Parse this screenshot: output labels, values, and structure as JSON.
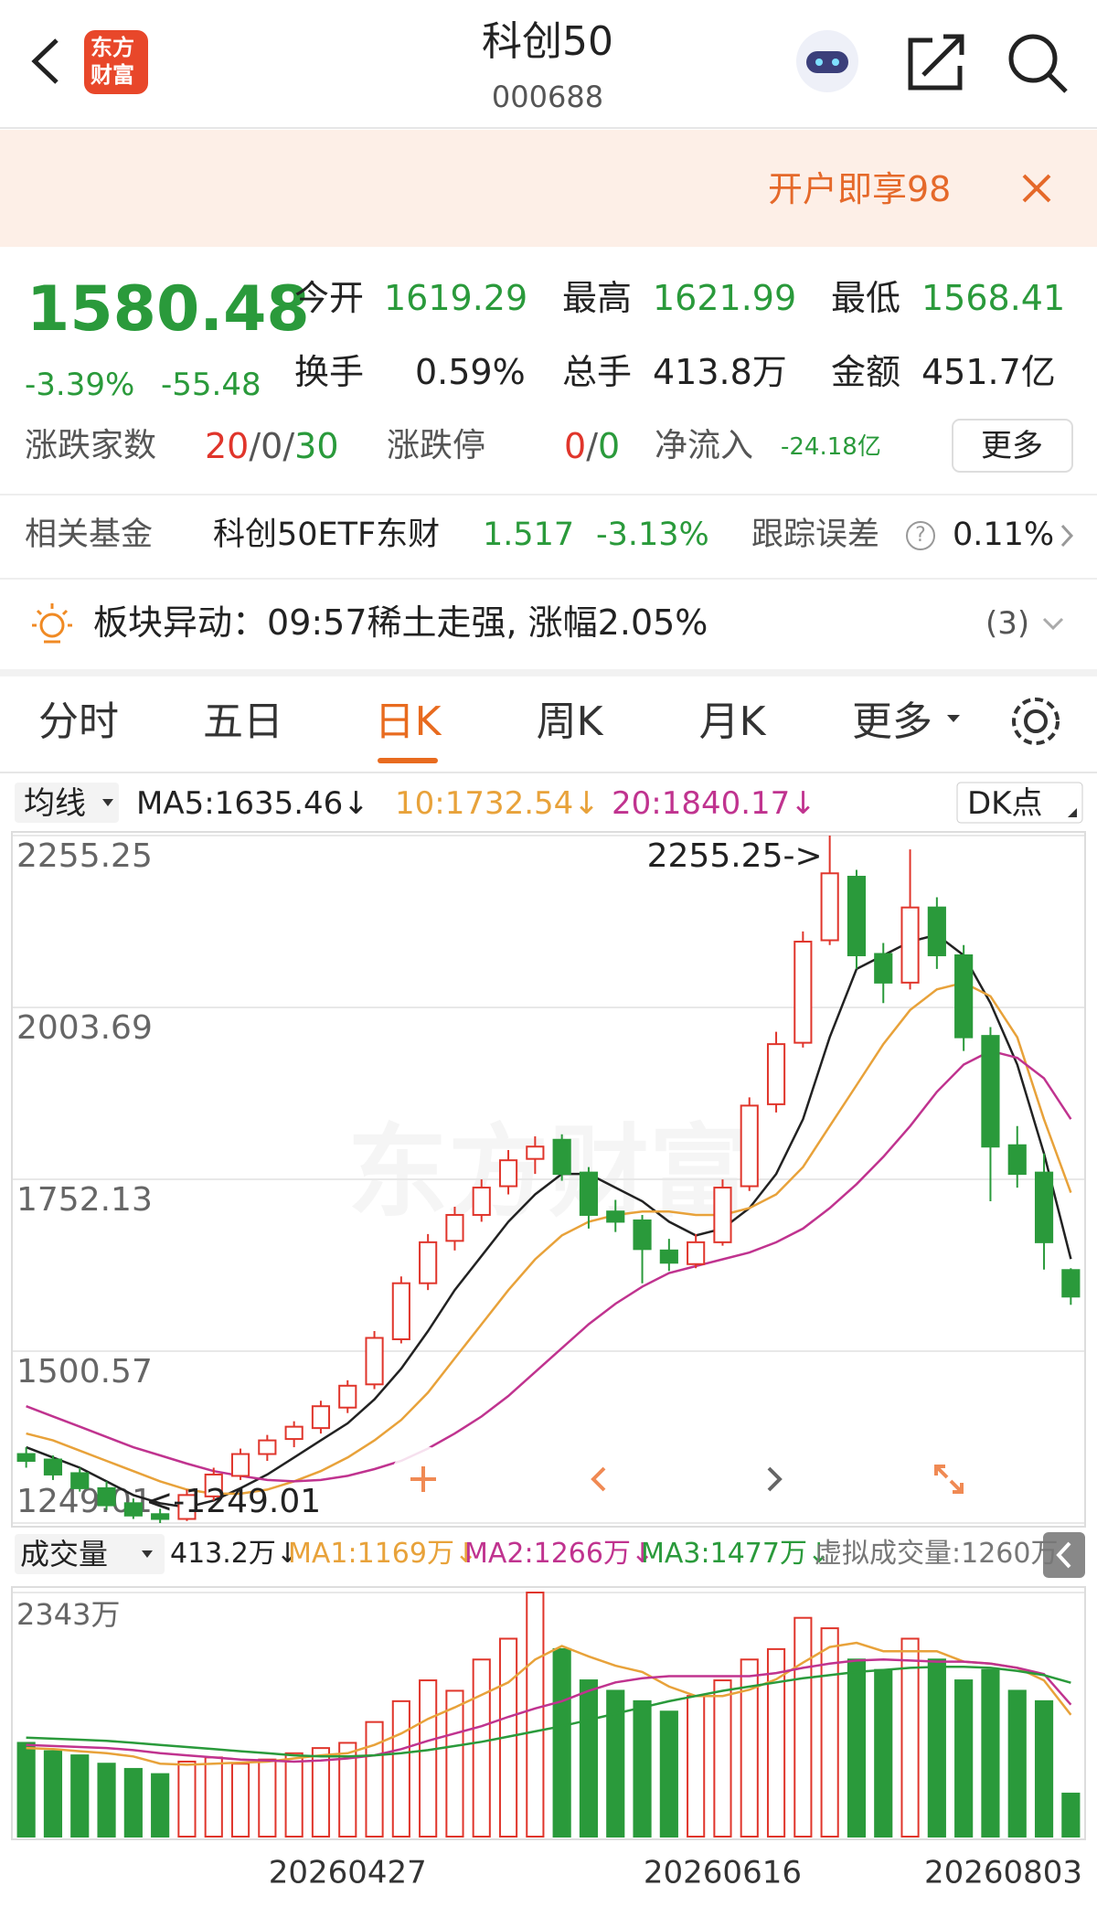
{
  "header": {
    "logo": [
      "东方",
      "财富"
    ],
    "title": "科创50",
    "code": "000688"
  },
  "banner": {
    "text": "开户即享98"
  },
  "quote": {
    "price": "1580.48",
    "change_pct": "-3.39%",
    "change": "-55.48",
    "fields": [
      {
        "label": "今开",
        "value": "1619.29"
      },
      {
        "label": "最高",
        "value": "1621.99"
      },
      {
        "label": "最低",
        "value": "1568.41"
      },
      {
        "label": "换手",
        "value": "0.59%"
      },
      {
        "label": "总手",
        "value": "413.8万"
      },
      {
        "label": "金额",
        "value": "451.7亿"
      }
    ],
    "separator": "/",
    "breadth": {
      "label": "涨跌家数",
      "up": "20",
      "flat": "0",
      "down": "30"
    },
    "limit": {
      "label": "涨跌停",
      "up": "0",
      "down": "0"
    },
    "inflow": {
      "label": "净流入",
      "value": "-24.18亿"
    },
    "more": "更多"
  },
  "fund": {
    "label": "相关基金",
    "name": "科创50ETF东财",
    "price": "1.517",
    "change": "-3.13%",
    "tracking_label": "跟踪误差",
    "help": "?",
    "tracking": "0.11%"
  },
  "alert": {
    "label": "板块异动：",
    "text": "09:57稀土走强, 涨幅2.05%",
    "count": "(3)"
  },
  "tabs": [
    "分时",
    "五日",
    "日K",
    "周K",
    "月K",
    "更多"
  ],
  "chart_data": [
    {
      "type": "candlestick",
      "watermark": "东方财富",
      "legend": {
        "selector": "均线",
        "ma5": "MA5:1635.46↓",
        "ma10": "10:1732.54↓",
        "ma20": "20:1840.17↓",
        "dk": "DK点"
      },
      "annotations": [
        "2255.25->",
        "<-1249.01"
      ],
      "up_color": "#e0352b",
      "down_color": "#2a9a3b",
      "ylim": [
        1249.01,
        2255.25
      ],
      "yticks": [
        2255.25,
        2003.69,
        1752.13,
        1500.57,
        1249.01
      ],
      "grid": true,
      "ohlc": [
        [
          1350,
          1360,
          1330,
          1340
        ],
        [
          1342,
          1348,
          1312,
          1320
        ],
        [
          1322,
          1330,
          1295,
          1300
        ],
        [
          1300,
          1310,
          1268,
          1275
        ],
        [
          1278,
          1285,
          1255,
          1260
        ],
        [
          1262,
          1270,
          1249.01,
          1255
        ],
        [
          1255,
          1298,
          1252,
          1290
        ],
        [
          1288,
          1330,
          1282,
          1320
        ],
        [
          1318,
          1358,
          1312,
          1350
        ],
        [
          1350,
          1378,
          1340,
          1370
        ],
        [
          1372,
          1398,
          1360,
          1390
        ],
        [
          1388,
          1428,
          1380,
          1420
        ],
        [
          1418,
          1458,
          1410,
          1450
        ],
        [
          1452,
          1530,
          1445,
          1520
        ],
        [
          1518,
          1610,
          1512,
          1600
        ],
        [
          1600,
          1672,
          1590,
          1660
        ],
        [
          1662,
          1712,
          1648,
          1700
        ],
        [
          1700,
          1752,
          1690,
          1740
        ],
        [
          1742,
          1795,
          1730,
          1780
        ],
        [
          1782,
          1815,
          1760,
          1800
        ],
        [
          1810,
          1818,
          1750,
          1760
        ],
        [
          1762,
          1770,
          1680,
          1700
        ],
        [
          1705,
          1722,
          1675,
          1690
        ],
        [
          1692,
          1700,
          1600,
          1650
        ],
        [
          1648,
          1665,
          1618,
          1630
        ],
        [
          1628,
          1672,
          1622,
          1660
        ],
        [
          1660,
          1752,
          1655,
          1740
        ],
        [
          1742,
          1872,
          1735,
          1860
        ],
        [
          1862,
          1968,
          1850,
          1950
        ],
        [
          1952,
          2115,
          1945,
          2100
        ],
        [
          2102,
          2255.25,
          2095,
          2200
        ],
        [
          2195,
          2205,
          2060,
          2080
        ],
        [
          2082,
          2098,
          2010,
          2040
        ],
        [
          2040,
          2235,
          2030,
          2150
        ],
        [
          2150,
          2165,
          2060,
          2080
        ],
        [
          2080,
          2095,
          1940,
          1960
        ],
        [
          1962,
          1975,
          1720,
          1800
        ],
        [
          1802,
          1830,
          1740,
          1760
        ],
        [
          1762,
          1790,
          1620,
          1660
        ],
        [
          1619.29,
          1621.99,
          1568.41,
          1580.48
        ]
      ],
      "lines": [
        {
          "color": "#222222",
          "values": [
            1360,
            1345,
            1330,
            1310,
            1290,
            1278,
            1272,
            1282,
            1300,
            1320,
            1345,
            1370,
            1395,
            1430,
            1475,
            1530,
            1590,
            1640,
            1690,
            1730,
            1760,
            1760,
            1740,
            1720,
            1690,
            1670,
            1680,
            1710,
            1760,
            1840,
            1960,
            2060,
            2080,
            2100,
            2110,
            2080,
            2010,
            1920,
            1790,
            1635.46
          ]
        },
        {
          "color": "#e8a23a",
          "values": [
            1380,
            1370,
            1355,
            1340,
            1325,
            1310,
            1298,
            1292,
            1292,
            1298,
            1310,
            1325,
            1345,
            1370,
            1400,
            1440,
            1490,
            1540,
            1590,
            1635,
            1670,
            1690,
            1700,
            1705,
            1705,
            1700,
            1700,
            1710,
            1730,
            1770,
            1830,
            1890,
            1950,
            2000,
            2030,
            2040,
            2020,
            1960,
            1840,
            1732.54
          ]
        },
        {
          "color": "#c0338f",
          "values": [
            1420,
            1405,
            1390,
            1375,
            1360,
            1348,
            1336,
            1325,
            1318,
            1312,
            1310,
            1312,
            1318,
            1328,
            1340,
            1358,
            1380,
            1405,
            1435,
            1470,
            1505,
            1540,
            1570,
            1595,
            1615,
            1625,
            1635,
            1645,
            1660,
            1680,
            1710,
            1745,
            1785,
            1830,
            1880,
            1920,
            1940,
            1930,
            1900,
            1840.17
          ]
        }
      ]
    },
    {
      "type": "volume",
      "legend": {
        "selector": "成交量",
        "vol": "413.2万↓",
        "ma1": "MA1:1169万↓",
        "ma2": "MA2:1266万↓",
        "ma3": "MA3:1477万↓",
        "virtual": "虚拟成交量:1260万"
      },
      "categories": [
        null,
        null,
        null,
        null,
        null,
        null,
        null,
        null,
        null,
        null,
        null,
        null,
        "20260427",
        null,
        null,
        null,
        null,
        null,
        null,
        null,
        null,
        null,
        null,
        null,
        null,
        null,
        "20260616",
        null,
        null,
        null,
        null,
        null,
        null,
        null,
        null,
        null,
        null,
        null,
        null,
        "20260803"
      ],
      "ylim": [
        0,
        2343
      ],
      "yticks": [
        {
          "value": 2343,
          "label": "2343万"
        }
      ],
      "values": [
        900,
        820,
        780,
        700,
        650,
        600,
        720,
        760,
        700,
        740,
        800,
        850,
        900,
        1100,
        1300,
        1500,
        1400,
        1700,
        1900,
        2343,
        1800,
        1500,
        1400,
        1300,
        1200,
        1350,
        1500,
        1700,
        1800,
        2100,
        2000,
        1700,
        1600,
        1900,
        1700,
        1500,
        1600,
        1400,
        1300,
        413.2
      ],
      "lines": [
        {
          "color": "#e8a23a",
          "values": [
            850,
            840,
            820,
            800,
            770,
            700,
            690,
            700,
            710,
            720,
            750,
            780,
            800,
            880,
            990,
            1130,
            1240,
            1360,
            1480,
            1700,
            1830,
            1730,
            1640,
            1580,
            1440,
            1350,
            1350,
            1410,
            1510,
            1670,
            1820,
            1860,
            1780,
            1780,
            1780,
            1680,
            1660,
            1620,
            1500,
            1169
          ]
        },
        {
          "color": "#c0338f",
          "values": [
            880,
            870,
            860,
            850,
            830,
            800,
            780,
            760,
            740,
            730,
            720,
            730,
            750,
            780,
            840,
            920,
            990,
            1060,
            1150,
            1230,
            1300,
            1400,
            1480,
            1520,
            1540,
            1540,
            1540,
            1540,
            1570,
            1620,
            1660,
            1690,
            1700,
            1690,
            1680,
            1680,
            1660,
            1620,
            1560,
            1266
          ]
        },
        {
          "color": "#2a9a3b",
          "values": [
            950,
            940,
            930,
            920,
            900,
            880,
            860,
            840,
            820,
            800,
            780,
            770,
            770,
            780,
            800,
            830,
            870,
            910,
            960,
            1010,
            1060,
            1120,
            1180,
            1240,
            1300,
            1350,
            1400,
            1440,
            1480,
            1520,
            1550,
            1580,
            1600,
            1620,
            1630,
            1630,
            1620,
            1590,
            1550,
            1477
          ]
        }
      ]
    }
  ]
}
